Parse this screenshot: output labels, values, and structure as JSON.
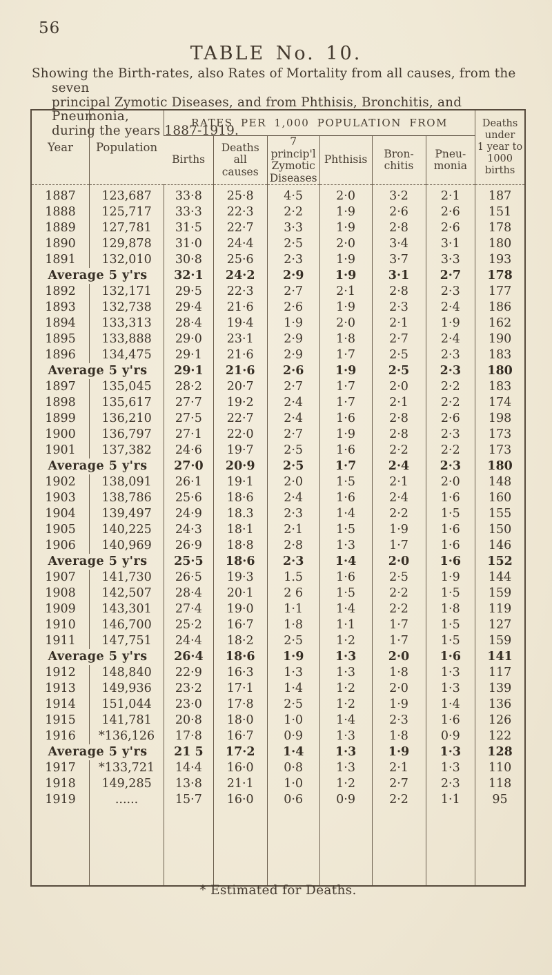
{
  "page": {
    "number": "56",
    "title": "TABLE No. 10.",
    "caption": "Showing the Birth-rates, also Rates of Mortality from all causes, from the seven\nprincipal Zymotic Diseases, and from Phthisis, Bronchitis, and Pneumonia,\nduring the years 1887-1919.",
    "footnote": "* Estimated for Deaths."
  },
  "table": {
    "columns": {
      "year": "Year",
      "population": "Population",
      "rates_group": "RATES PER 1,000 POPULATION FROM",
      "births": "Births",
      "deaths_all": "Deaths\nall causes",
      "zymotic": "7 princip'l\nZymotic\nDiseases",
      "phthisis": "Phthisis",
      "bronchitis": "Bron-\nchitis",
      "pneumonia": "Pneu-\nmonia",
      "infant": "Deaths\nunder\n1 year to\n1000 births"
    },
    "rows": [
      {
        "type": "year",
        "year": "1887",
        "population": "123,687",
        "births": "33·8",
        "deaths_all": "25·8",
        "zymotic": "4·5",
        "phthisis": "2·0",
        "bronchitis": "3·2",
        "pneumonia": "2·1",
        "infant_mortality": "187"
      },
      {
        "type": "year",
        "year": "1888",
        "population": "125,717",
        "births": "33·3",
        "deaths_all": "22·3",
        "zymotic": "2·2",
        "phthisis": "1·9",
        "bronchitis": "2·6",
        "pneumonia": "2·6",
        "infant_mortality": "151"
      },
      {
        "type": "year",
        "year": "1889",
        "population": "127,781",
        "births": "31·5",
        "deaths_all": "22·7",
        "zymotic": "3·3",
        "phthisis": "1·9",
        "bronchitis": "2·8",
        "pneumonia": "2·6",
        "infant_mortality": "178"
      },
      {
        "type": "year",
        "year": "1890",
        "population": "129,878",
        "births": "31·0",
        "deaths_all": "24·4",
        "zymotic": "2·5",
        "phthisis": "2·0",
        "bronchitis": "3·4",
        "pneumonia": "3·1",
        "infant_mortality": "180"
      },
      {
        "type": "year",
        "year": "1891",
        "population": "132,010",
        "births": "30·8",
        "deaths_all": "25·6",
        "zymotic": "2·3",
        "phthisis": "1·9",
        "bronchitis": "3·7",
        "pneumonia": "3·3",
        "infant_mortality": "193"
      },
      {
        "type": "average",
        "label": "Average 5 y'rs",
        "births": "32·1",
        "deaths_all": "24·2",
        "zymotic": "2·9",
        "phthisis": "1·9",
        "bronchitis": "3·1",
        "pneumonia": "2·7",
        "infant_mortality": "178"
      },
      {
        "type": "year",
        "year": "1892",
        "population": "132,171",
        "births": "29·5",
        "deaths_all": "22·3",
        "zymotic": "2·7",
        "phthisis": "2·1",
        "bronchitis": "2·8",
        "pneumonia": "2·3",
        "infant_mortality": "177"
      },
      {
        "type": "year",
        "year": "1893",
        "population": "132,738",
        "births": "29·4",
        "deaths_all": "21·6",
        "zymotic": "2·6",
        "phthisis": "1·9",
        "bronchitis": "2·3",
        "pneumonia": "2·4",
        "infant_mortality": "186"
      },
      {
        "type": "year",
        "year": "1894",
        "population": "133,313",
        "births": "28·4",
        "deaths_all": "19·4",
        "zymotic": "1·9",
        "phthisis": "2·0",
        "bronchitis": "2·1",
        "pneumonia": "1·9",
        "infant_mortality": "162"
      },
      {
        "type": "year",
        "year": "1895",
        "population": "133,888",
        "births": "29·0",
        "deaths_all": "23·1",
        "zymotic": "2·9",
        "phthisis": "1·8",
        "bronchitis": "2·7",
        "pneumonia": "2·4",
        "infant_mortality": "190"
      },
      {
        "type": "year",
        "year": "1896",
        "population": "134,475",
        "births": "29·1",
        "deaths_all": "21·6",
        "zymotic": "2·9",
        "phthisis": "1·7",
        "bronchitis": "2·5",
        "pneumonia": "2·3",
        "infant_mortality": "183"
      },
      {
        "type": "average",
        "label": "Average 5 y'rs",
        "births": "29·1",
        "deaths_all": "21·6",
        "zymotic": "2·6",
        "phthisis": "1·9",
        "bronchitis": "2·5",
        "pneumonia": "2·3",
        "infant_mortality": "180"
      },
      {
        "type": "year",
        "year": "1897",
        "population": "135,045",
        "births": "28·2",
        "deaths_all": "20·7",
        "zymotic": "2·7",
        "phthisis": "1·7",
        "bronchitis": "2·0",
        "pneumonia": "2·2",
        "infant_mortality": "183"
      },
      {
        "type": "year",
        "year": "1898",
        "population": "135,617",
        "births": "27·7",
        "deaths_all": "19·2",
        "zymotic": "2·4",
        "phthisis": "1·7",
        "bronchitis": "2·1",
        "pneumonia": "2·2",
        "infant_mortality": "174"
      },
      {
        "type": "year",
        "year": "1899",
        "population": "136,210",
        "births": "27·5",
        "deaths_all": "22·7",
        "zymotic": "2·4",
        "phthisis": "1·6",
        "bronchitis": "2·8",
        "pneumonia": "2·6",
        "infant_mortality": "198"
      },
      {
        "type": "year",
        "year": "1900",
        "population": "136,797",
        "births": "27·1",
        "deaths_all": "22·0",
        "zymotic": "2·7",
        "phthisis": "1·9",
        "bronchitis": "2·8",
        "pneumonia": "2·3",
        "infant_mortality": "173"
      },
      {
        "type": "year",
        "year": "1901",
        "population": "137,382",
        "births": "24·6",
        "deaths_all": "19·7",
        "zymotic": "2·5",
        "phthisis": "1·6",
        "bronchitis": "2·2",
        "pneumonia": "2·2",
        "infant_mortality": "173"
      },
      {
        "type": "average",
        "label": "Average 5 y'rs",
        "births": "27·0",
        "deaths_all": "20·9",
        "zymotic": "2·5",
        "phthisis": "1·7",
        "bronchitis": "2·4",
        "pneumonia": "2·3",
        "infant_mortality": "180"
      },
      {
        "type": "year",
        "year": "1902",
        "population": "138,091",
        "births": "26·1",
        "deaths_all": "19·1",
        "zymotic": "2·0",
        "phthisis": "1·5",
        "bronchitis": "2·1",
        "pneumonia": "2·0",
        "infant_mortality": "148"
      },
      {
        "type": "year",
        "year": "1903",
        "population": "138,786",
        "births": "25·6",
        "deaths_all": "18·6",
        "zymotic": "2·4",
        "phthisis": "1·6",
        "bronchitis": "2·4",
        "pneumonia": "1·6",
        "infant_mortality": "160"
      },
      {
        "type": "year",
        "year": "1904",
        "population": "139,497",
        "births": "24·9",
        "deaths_all": "18.3",
        "zymotic": "2·3",
        "phthisis": "1·4",
        "bronchitis": "2·2",
        "pneumonia": "1·5",
        "infant_mortality": "155"
      },
      {
        "type": "year",
        "year": "1905",
        "population": "140,225",
        "births": "24·3",
        "deaths_all": "18·1",
        "zymotic": "2·1",
        "phthisis": "1·5",
        "bronchitis": "1·9",
        "pneumonia": "1·6",
        "infant_mortality": "150"
      },
      {
        "type": "year",
        "year": "1906",
        "population": "140,969",
        "births": "26·9",
        "deaths_all": "18·8",
        "zymotic": "2·8",
        "phthisis": "1·3",
        "bronchitis": "1·7",
        "pneumonia": "1·6",
        "infant_mortality": "146"
      },
      {
        "type": "average",
        "label": "Average 5 y'rs",
        "births": "25·5",
        "deaths_all": "18·6",
        "zymotic": "2·3",
        "phthisis": "1·4",
        "bronchitis": "2·0",
        "pneumonia": "1·6",
        "infant_mortality": "152"
      },
      {
        "type": "year",
        "year": "1907",
        "population": "141,730",
        "births": "26·5",
        "deaths_all": "19·3",
        "zymotic": "1.5",
        "phthisis": "1·6",
        "bronchitis": "2·5",
        "pneumonia": "1·9",
        "infant_mortality": "144"
      },
      {
        "type": "year",
        "year": "1908",
        "population": "142,507",
        "births": "28·4",
        "deaths_all": "20·1",
        "zymotic": "2 6",
        "phthisis": "1·5",
        "bronchitis": "2·2",
        "pneumonia": "1·5",
        "infant_mortality": "159"
      },
      {
        "type": "year",
        "year": "1909",
        "population": "143,301",
        "births": "27·4",
        "deaths_all": "19·0",
        "zymotic": "1·1",
        "phthisis": "1·4",
        "bronchitis": "2·2",
        "pneumonia": "1·8",
        "infant_mortality": "119"
      },
      {
        "type": "year",
        "year": "1910",
        "population": "146,700",
        "births": "25·2",
        "deaths_all": "16·7",
        "zymotic": "1·8",
        "phthisis": "1·1",
        "bronchitis": "1·7",
        "pneumonia": "1·5",
        "infant_mortality": "127"
      },
      {
        "type": "year",
        "year": "1911",
        "population": "147,751",
        "births": "24·4",
        "deaths_all": "18·2",
        "zymotic": "2·5",
        "phthisis": "1·2",
        "bronchitis": "1·7",
        "pneumonia": "1·5",
        "infant_mortality": "159"
      },
      {
        "type": "average",
        "label": "Average 5 y'rs",
        "births": "26·4",
        "deaths_all": "18·6",
        "zymotic": "1·9",
        "phthisis": "1·3",
        "bronchitis": "2·0",
        "pneumonia": "1·6",
        "infant_mortality": "141"
      },
      {
        "type": "year",
        "year": "1912",
        "population": "148,840",
        "births": "22·9",
        "deaths_all": "16·3",
        "zymotic": "1·3",
        "phthisis": "1·3",
        "bronchitis": "1·8",
        "pneumonia": "1·3",
        "infant_mortality": "117"
      },
      {
        "type": "year",
        "year": "1913",
        "population": "149,936",
        "births": "23·2",
        "deaths_all": "17·1",
        "zymotic": "1·4",
        "phthisis": "1·2",
        "bronchitis": "2·0",
        "pneumonia": "1·3",
        "infant_mortality": "139"
      },
      {
        "type": "year",
        "year": "1914",
        "population": "151,044",
        "births": "23·0",
        "deaths_all": "17·8",
        "zymotic": "2·5",
        "phthisis": "1·2",
        "bronchitis": "1·9",
        "pneumonia": "1·4",
        "infant_mortality": "136"
      },
      {
        "type": "year",
        "year": "1915",
        "population": "141,781",
        "births": "20·8",
        "deaths_all": "18·0",
        "zymotic": "1·0",
        "phthisis": "1·4",
        "bronchitis": "2·3",
        "pneumonia": "1·6",
        "infant_mortality": "126"
      },
      {
        "type": "year",
        "year": "1916",
        "population": "*136,126",
        "births": "17·8",
        "deaths_all": "16·7",
        "zymotic": "0·9",
        "phthisis": "1·3",
        "bronchitis": "1·8",
        "pneumonia": "0·9",
        "infant_mortality": "122"
      },
      {
        "type": "average",
        "label": "Average 5 y'rs",
        "births": "21 5",
        "deaths_all": "17·2",
        "zymotic": "1·4",
        "phthisis": "1·3",
        "bronchitis": "1·9",
        "pneumonia": "1·3",
        "infant_mortality": "128"
      },
      {
        "type": "year",
        "year": "1917",
        "population": "*133,721",
        "births": "14·4",
        "deaths_all": "16·0",
        "zymotic": "0·8",
        "phthisis": "1·3",
        "bronchitis": "2·1",
        "pneumonia": "1·3",
        "infant_mortality": "110"
      },
      {
        "type": "year",
        "year": "1918",
        "population": "149,285",
        "births": "13·8",
        "deaths_all": "21·1",
        "zymotic": "1·0",
        "phthisis": "1·2",
        "bronchitis": "2·7",
        "pneumonia": "2·3",
        "infant_mortality": "118"
      },
      {
        "type": "year",
        "year": "1919",
        "population": "......",
        "births": "15·7",
        "deaths_all": "16·0",
        "zymotic": "0·6",
        "phthisis": "0·9",
        "bronchitis": "2·2",
        "pneumonia": "1·1",
        "infant_mortality": "95"
      }
    ]
  }
}
